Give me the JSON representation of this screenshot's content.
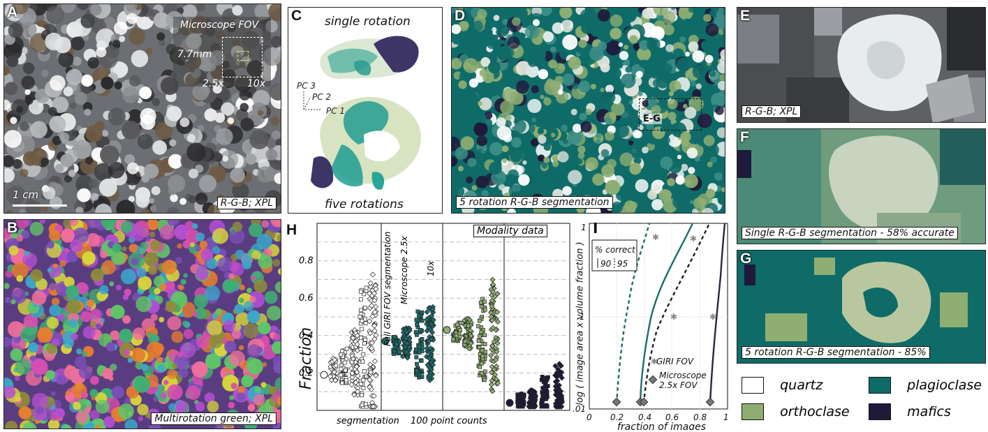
{
  "panels": {
    "A": {
      "label": "A",
      "fov_title": "Microscope FOV",
      "size_label": "7.7mm",
      "mag_low": "2.5x",
      "mag_high": "10x",
      "scale_label": "1 cm",
      "caption": "R-G-B; XPL"
    },
    "B": {
      "label": "B",
      "caption": "Multirotation green; XPL"
    },
    "C": {
      "label": "C",
      "top_label": "single rotation",
      "bottom_label": "five rotations",
      "pc3": "PC 3",
      "pc2": "PC 2",
      "pc1": "PC 1"
    },
    "D": {
      "label": "D",
      "box_label": "E-G",
      "caption": "5 rotation R-G-B segmentation"
    },
    "E": {
      "label": "E",
      "caption": "R-G-B; XPL"
    },
    "F": {
      "label": "F",
      "caption": "Single R-G-B segmentation - 58% accurate"
    },
    "G": {
      "label": "G",
      "caption": "5 rotation R-G-B segmentation - 85%"
    },
    "H": {
      "label": "H",
      "ylabel": "Fraction",
      "modality": "Modality data",
      "full_giri": "Full GIRI FOV segmentation",
      "micro": "Microscope 2.5x",
      "tenx": "10x",
      "segmentation": "segmentation",
      "point_counts": "100 point counts",
      "yticks": [
        "0.2",
        "0.4",
        "0.6",
        "0.8"
      ]
    },
    "I": {
      "label": "I",
      "ylabel": "log ( image area  x  volume fraction )",
      "xlabel": "fraction of images",
      "legend_title": "% correct",
      "legend_90": "90",
      "legend_95": "95",
      "giri_fov": "GIRI FOV",
      "micro_fov_1": "Microscope",
      "micro_fov_2": "2.5x FOV",
      "yticks": [
        "1",
        ".1",
        ".01"
      ],
      "xticks": [
        "0",
        "0.2",
        "0.4",
        "0.6",
        "0.8",
        "1"
      ]
    }
  },
  "legend": {
    "items": [
      {
        "name": "quartz",
        "color": "#ffffff"
      },
      {
        "name": "plagioclase",
        "color": "#0f6b68"
      },
      {
        "name": "orthoclase",
        "color": "#8fae72"
      },
      {
        "name": "mafics",
        "color": "#1f1a3b"
      }
    ]
  },
  "colors": {
    "plagioclase": "#0f6b68",
    "orthoclase": "#8fae72",
    "quartz": "#ffffff",
    "mafics": "#1f1a3b",
    "teal_line": "#1a6d6a"
  }
}
